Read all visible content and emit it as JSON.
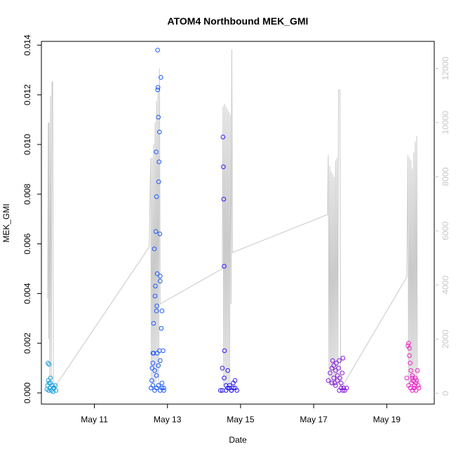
{
  "chart_data": {
    "type": "scatter",
    "title": "ATOM4 Northbound MEK_GMI",
    "xlabel": "Date",
    "ylabel": "MEK_GMI",
    "x_tick_labels": [
      "May 11",
      "May 13",
      "May 15",
      "May 17",
      "May 19"
    ],
    "x_tick_days": [
      11,
      13,
      15,
      17,
      19
    ],
    "xlim_days": [
      9.55,
      20.3
    ],
    "ylim": [
      -0.00045,
      0.01415
    ],
    "y_ticks": [
      "0.000",
      "0.002",
      "0.004",
      "0.006",
      "0.008",
      "0.010",
      "0.012",
      "0.014"
    ],
    "y_tick_values": [
      0,
      0.002,
      0.004,
      0.006,
      0.008,
      0.01,
      0.012,
      0.014
    ],
    "y2lim": [
      -400,
      13000
    ],
    "y2_ticks": [
      "0",
      "2000",
      "4000",
      "6000",
      "8000",
      "10000",
      "12000"
    ],
    "y2_tick_values": [
      0,
      2000,
      4000,
      6000,
      8000,
      10000,
      12000
    ],
    "series": [
      {
        "color": "#1ba1e2",
        "points": [
          [
            9.7,
            0.00015
          ],
          [
            9.72,
            0.0003
          ],
          [
            9.74,
            0.0005
          ],
          [
            9.75,
            0.0001
          ],
          [
            9.76,
            0.0004
          ],
          [
            9.78,
            0.0002
          ],
          [
            9.8,
            0.0006
          ],
          [
            9.82,
            0.0001
          ],
          [
            9.85,
            0.0003
          ],
          [
            9.87,
            5e-05
          ],
          [
            9.9,
            0.0002
          ],
          [
            9.93,
            0.0003
          ],
          [
            9.95,
            0.0001
          ],
          [
            9.73,
            0.0012
          ],
          [
            9.76,
            0.00115
          ],
          [
            9.8,
            0.0004
          ],
          [
            9.88,
            0.0002
          ]
        ]
      },
      {
        "color": "#1f5bff",
        "points": [
          [
            12.55,
            0.0002
          ],
          [
            12.57,
            0.0005
          ],
          [
            12.58,
            0.001
          ],
          [
            12.6,
            0.0016
          ],
          [
            12.62,
            0.0028
          ],
          [
            12.64,
            0.0058
          ],
          [
            12.66,
            0.0039
          ],
          [
            12.67,
            0.0043
          ],
          [
            12.68,
            0.0065
          ],
          [
            12.69,
            0.0097
          ],
          [
            12.7,
            0.0079
          ],
          [
            12.7,
            0.0033
          ],
          [
            12.71,
            0.0035
          ],
          [
            12.72,
            0.0048
          ],
          [
            12.73,
            0.0122
          ],
          [
            12.73,
            0.0138
          ],
          [
            12.74,
            0.0123
          ],
          [
            12.75,
            0.0111
          ],
          [
            12.76,
            0.0085
          ],
          [
            12.77,
            0.0093
          ],
          [
            12.78,
            0.0105
          ],
          [
            12.79,
            0.0064
          ],
          [
            12.8,
            0.0047
          ],
          [
            12.8,
            0.0045
          ],
          [
            12.82,
            0.0127
          ],
          [
            12.83,
            0.0026
          ],
          [
            12.85,
            0.0033
          ],
          [
            12.88,
            0.0017
          ],
          [
            12.6,
            0.0012
          ],
          [
            12.65,
            0.0009
          ],
          [
            12.7,
            0.0007
          ],
          [
            12.75,
            0.0011
          ],
          [
            12.8,
            0.0013
          ],
          [
            12.85,
            0.0004
          ],
          [
            12.9,
            0.0002
          ],
          [
            12.6,
            0.0003
          ],
          [
            12.65,
            0.0001
          ],
          [
            12.7,
            0.0002
          ],
          [
            12.75,
            0.0003
          ],
          [
            12.8,
            0.0001
          ],
          [
            12.85,
            0.0002
          ],
          [
            12.9,
            0.0001
          ],
          [
            12.62,
            0.0016
          ],
          [
            12.72,
            0.0016
          ],
          [
            12.78,
            0.0017
          ]
        ]
      },
      {
        "color": "#2a1cf0",
        "points": [
          [
            14.45,
            0.0001
          ],
          [
            14.5,
            0.0001
          ],
          [
            14.52,
            0.0103
          ],
          [
            14.53,
            0.0091
          ],
          [
            14.54,
            0.0078
          ],
          [
            14.55,
            0.0051
          ],
          [
            14.56,
            0.0017
          ],
          [
            14.5,
            0.001
          ],
          [
            14.55,
            0.0006
          ],
          [
            14.6,
            0.0003
          ],
          [
            14.65,
            0.0009
          ],
          [
            14.7,
            0.0002
          ],
          [
            14.75,
            0.0001
          ],
          [
            14.8,
            0.0004
          ],
          [
            14.85,
            0.0005
          ],
          [
            14.9,
            0.0001
          ],
          [
            14.6,
            0.0001
          ],
          [
            14.65,
            0.0002
          ],
          [
            14.7,
            0.0003
          ],
          [
            14.75,
            0.0001
          ],
          [
            14.8,
            0.0002
          ],
          [
            14.85,
            0.0002
          ]
        ]
      },
      {
        "color": "#8a1be2",
        "points": [
          [
            17.4,
            0.0005
          ],
          [
            17.45,
            0.0008
          ],
          [
            17.5,
            0.001
          ],
          [
            17.52,
            0.0013
          ],
          [
            17.55,
            0.0006
          ],
          [
            17.58,
            0.0004
          ],
          [
            17.6,
            0.0009
          ],
          [
            17.62,
            0.0012
          ],
          [
            17.65,
            0.0007
          ],
          [
            17.68,
            0.001
          ],
          [
            17.7,
            0.0013
          ],
          [
            17.72,
            0.0006
          ],
          [
            17.75,
            0.0004
          ],
          [
            17.78,
            0.0008
          ],
          [
            17.8,
            0.0014
          ],
          [
            17.82,
            0.0002
          ],
          [
            17.85,
            0.0001
          ],
          [
            17.9,
            0.0002
          ],
          [
            17.6,
            0.0003
          ],
          [
            17.7,
            0.0001
          ],
          [
            17.75,
            0.0002
          ],
          [
            17.8,
            0.0001
          ],
          [
            17.5,
            0.0004
          ],
          [
            17.55,
            0.0011
          ],
          [
            17.65,
            0.0005
          ]
        ]
      },
      {
        "color": "#ee20c8",
        "points": [
          [
            19.55,
            0.0006
          ],
          [
            19.58,
            0.0019
          ],
          [
            19.6,
            0.002
          ],
          [
            19.62,
            0.0018
          ],
          [
            19.64,
            0.0012
          ],
          [
            19.66,
            0.0009
          ],
          [
            19.68,
            0.0004
          ],
          [
            19.7,
            0.0006
          ],
          [
            19.72,
            0.0005
          ],
          [
            19.74,
            0.0002
          ],
          [
            19.76,
            0.0003
          ],
          [
            19.78,
            0.0006
          ],
          [
            19.8,
            0.0004
          ],
          [
            19.82,
            0.0005
          ],
          [
            19.84,
            0.0009
          ],
          [
            19.86,
            0.0003
          ],
          [
            19.88,
            0.0002
          ],
          [
            19.65,
            0.0002
          ],
          [
            19.7,
            0.0001
          ],
          [
            19.75,
            0.0002
          ],
          [
            19.8,
            0.0001
          ],
          [
            19.6,
            0.0003
          ],
          [
            19.62,
            0.0015
          ],
          [
            19.7,
            0.0007
          ]
        ]
      }
    ],
    "secondary_line": {
      "color": "#c8c8c8",
      "points": [
        [
          9.72,
          3500
        ],
        [
          9.74,
          10000
        ],
        [
          9.75,
          2000
        ],
        [
          9.76,
          10000
        ],
        [
          9.78,
          500
        ],
        [
          9.8,
          11000
        ],
        [
          9.82,
          500
        ],
        [
          9.84,
          11500
        ],
        [
          9.86,
          11500
        ],
        [
          9.88,
          200
        ],
        [
          9.9,
          200
        ],
        [
          12.5,
          5400
        ],
        [
          12.54,
          8700
        ],
        [
          12.56,
          400
        ],
        [
          12.58,
          8700
        ],
        [
          12.6,
          400
        ],
        [
          12.62,
          9200
        ],
        [
          12.64,
          300
        ],
        [
          12.66,
          10000
        ],
        [
          12.68,
          400
        ],
        [
          12.7,
          10800
        ],
        [
          12.72,
          600
        ],
        [
          12.74,
          11200
        ],
        [
          12.76,
          300
        ],
        [
          12.78,
          12000
        ],
        [
          12.8,
          3300
        ],
        [
          14.5,
          4600
        ],
        [
          14.52,
          10600
        ],
        [
          14.54,
          300
        ],
        [
          14.56,
          10700
        ],
        [
          14.58,
          300
        ],
        [
          14.6,
          10600
        ],
        [
          14.62,
          300
        ],
        [
          14.64,
          10500
        ],
        [
          14.66,
          300
        ],
        [
          14.68,
          10400
        ],
        [
          14.7,
          300
        ],
        [
          14.72,
          10300
        ],
        [
          14.74,
          3300
        ],
        [
          14.76,
          12700
        ],
        [
          14.78,
          5200
        ],
        [
          17.38,
          6600
        ],
        [
          17.4,
          8800
        ],
        [
          17.42,
          300
        ],
        [
          17.44,
          8400
        ],
        [
          17.46,
          300
        ],
        [
          17.48,
          8200
        ],
        [
          17.5,
          300
        ],
        [
          17.52,
          8100
        ],
        [
          17.54,
          400
        ],
        [
          17.56,
          8000
        ],
        [
          17.58,
          300
        ],
        [
          17.6,
          8600
        ],
        [
          17.62,
          400
        ],
        [
          17.64,
          8700
        ],
        [
          17.66,
          300
        ],
        [
          17.68,
          11200
        ],
        [
          17.7,
          11200
        ],
        [
          17.72,
          11200
        ],
        [
          17.74,
          300
        ],
        [
          17.76,
          200
        ],
        [
          19.55,
          4300
        ],
        [
          19.58,
          8800
        ],
        [
          19.6,
          200
        ],
        [
          19.62,
          8700
        ],
        [
          19.64,
          300
        ],
        [
          19.66,
          8600
        ],
        [
          19.68,
          300
        ],
        [
          19.7,
          8300
        ],
        [
          19.72,
          300
        ],
        [
          19.74,
          8900
        ],
        [
          19.76,
          300
        ],
        [
          19.78,
          9300
        ],
        [
          19.8,
          300
        ],
        [
          19.82,
          9500
        ],
        [
          19.84,
          300
        ]
      ]
    },
    "legend": "none",
    "grid": false
  }
}
